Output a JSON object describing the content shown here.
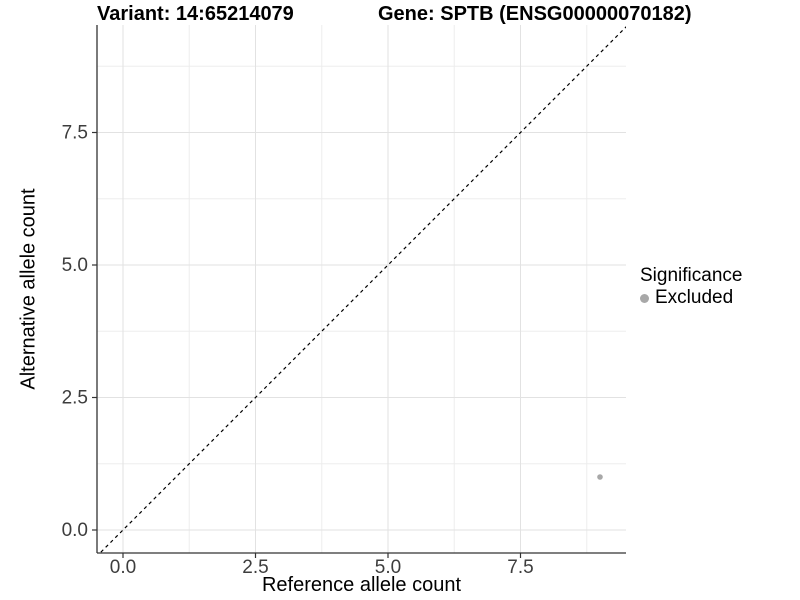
{
  "titles": {
    "variant": "Variant: 14:65214079",
    "gene": "Gene: SPTB (ENSG00000070182)"
  },
  "colors": {
    "grid_major": "#e2e2e2",
    "grid_minor": "#ededed",
    "axis_line": "#333333",
    "tick_text": "#3d3d3d",
    "reference_line": "#000000",
    "point": "#a8a8a8",
    "background": "#ffffff"
  },
  "chart_data": {
    "type": "scatter",
    "titles": [
      "Variant: 14:65214079",
      "Gene: SPTB (ENSG00000070182)"
    ],
    "xlabel": "Reference allele count",
    "ylabel": "Alternative allele count",
    "xlim": [
      -0.49,
      9.49
    ],
    "ylim": [
      -0.43,
      9.53
    ],
    "grid": true,
    "x_ticks": {
      "values": [
        0,
        2.5,
        5.0,
        7.5
      ],
      "labels": [
        "0.0",
        "2.5",
        "5.0",
        "7.5"
      ]
    },
    "y_ticks": {
      "values": [
        0,
        2.5,
        5.0,
        7.5
      ],
      "labels": [
        "0.0",
        "2.5",
        "5.0",
        "7.5"
      ]
    },
    "minor_grid_values": [
      1.25,
      3.75,
      6.25,
      8.75
    ],
    "series": [
      {
        "name": "Excluded",
        "color": "#a8a8a8",
        "points": [
          {
            "x": 9,
            "y": 1
          }
        ]
      }
    ],
    "reference_line": {
      "kind": "identity",
      "slope": 1,
      "intercept": 0,
      "linetype": "dashed",
      "color": "#000000"
    },
    "legend": {
      "title": "Significance",
      "position": "right",
      "entries": [
        {
          "label": "Excluded",
          "color": "#a8a8a8"
        }
      ]
    }
  }
}
